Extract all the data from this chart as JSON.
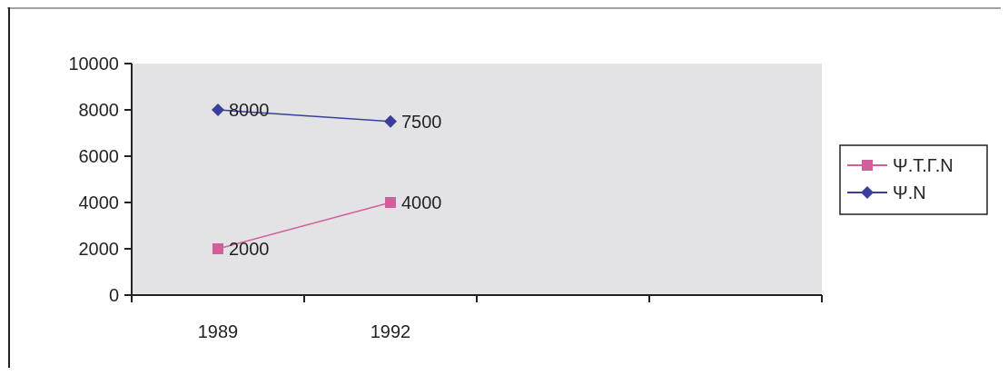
{
  "chart_data": {
    "type": "line",
    "categories": [
      "1989",
      "1992",
      null,
      null
    ],
    "series": [
      {
        "name": "Ψ.Τ.Γ.Ν",
        "color": "#d0609c",
        "marker": "square",
        "values": [
          2000,
          4000,
          null,
          null
        ]
      },
      {
        "name": "Ψ.Ν",
        "color": "#3a3f9c",
        "marker": "diamond",
        "values": [
          8000,
          7500,
          null,
          null
        ]
      }
    ],
    "ylim": [
      0,
      10000
    ],
    "yticks": [
      0,
      2000,
      4000,
      6000,
      8000,
      10000
    ],
    "data_labels": true,
    "legend": "right",
    "grid": false,
    "line_style": "solid"
  }
}
